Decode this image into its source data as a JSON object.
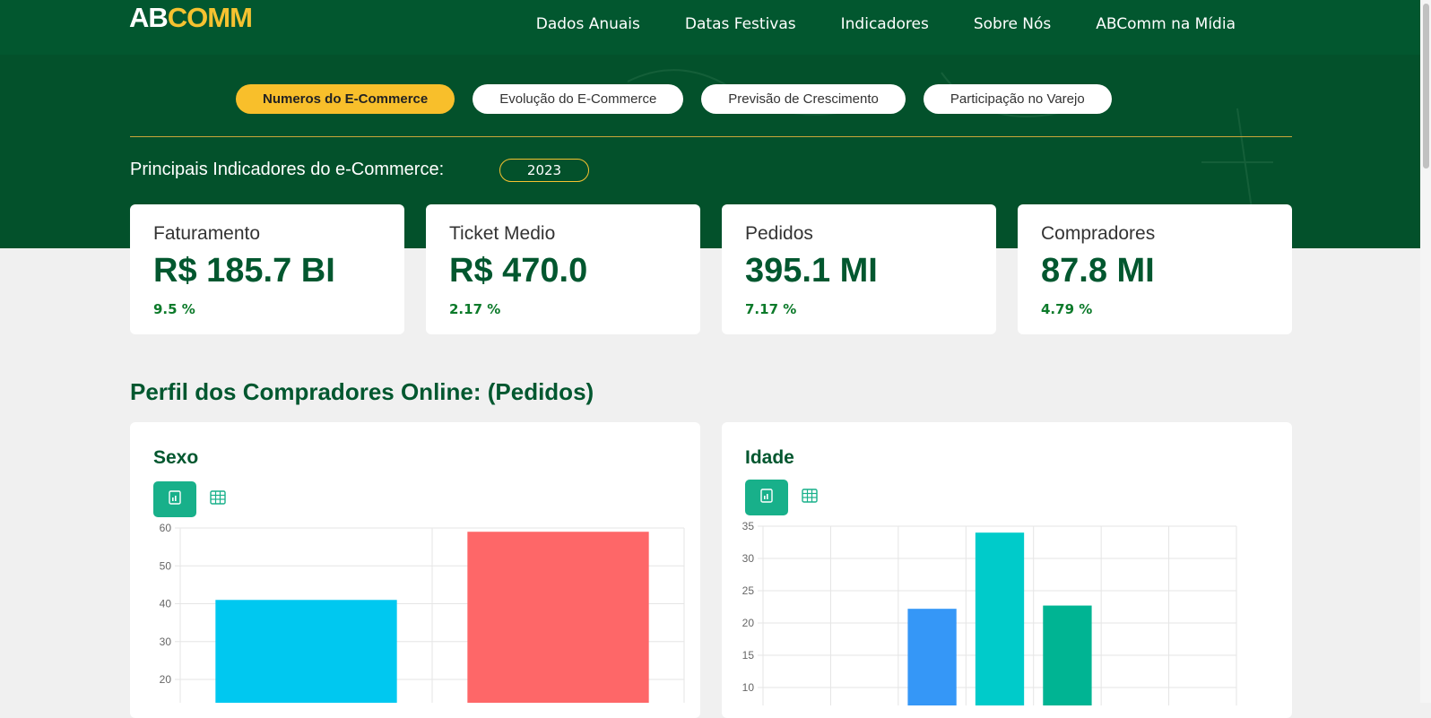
{
  "brand": {
    "logo_ab": "AB",
    "logo_comm": "COMM"
  },
  "nav": {
    "items": [
      "Dados Anuais",
      "Datas Festivas",
      "Indicadores",
      "Sobre Nós",
      "ABComm na Mídia"
    ]
  },
  "tabs": [
    {
      "label": "Numeros do E-Commerce",
      "active": true
    },
    {
      "label": "Evolução do E-Commerce",
      "active": false
    },
    {
      "label": "Previsão de Crescimento",
      "active": false
    },
    {
      "label": "Participação no Varejo",
      "active": false
    }
  ],
  "indicators": {
    "title": "Principais Indicadores do e-Commerce:",
    "year": "2023",
    "cards": [
      {
        "label": "Faturamento",
        "value": "R$ 185.7 BI",
        "pct": "9.5 %"
      },
      {
        "label": "Ticket Medio",
        "value": "R$ 470.0",
        "pct": "2.17 %"
      },
      {
        "label": "Pedidos",
        "value": "395.1 MI",
        "pct": "7.17 %"
      },
      {
        "label": "Compradores",
        "value": "87.8 MI",
        "pct": "4.79 %"
      }
    ]
  },
  "profile": {
    "title": "Perfil dos Compradores Online: (Pedidos)"
  },
  "chart_data": [
    {
      "type": "bar",
      "title": "Sexo",
      "categories": [
        "",
        ""
      ],
      "values": [
        41,
        59
      ],
      "colors": [
        "#00c8f0",
        "#fe6768"
      ],
      "yticks": [
        20,
        30,
        40,
        50,
        60
      ],
      "ylim": [
        0,
        60
      ],
      "grid": true
    },
    {
      "type": "bar",
      "title": "Idade",
      "categories": [
        "",
        "",
        "",
        "",
        "",
        "",
        ""
      ],
      "values": [
        null,
        null,
        22.2,
        34,
        22.7,
        null,
        null
      ],
      "colors": [
        "#3597f7",
        "#3597f7",
        "#3597f7",
        "#00cbca",
        "#00b493",
        "#3597f7",
        "#3597f7"
      ],
      "yticks": [
        10,
        15,
        20,
        25,
        30,
        35
      ],
      "ylim": [
        0,
        35
      ],
      "grid": true
    }
  ],
  "colors": {
    "primary": "#02572f",
    "accent": "#f8bf2b",
    "teal": "#18b08a"
  },
  "icons": {
    "chart_view": "bar-chart-icon",
    "table_view": "table-icon"
  }
}
